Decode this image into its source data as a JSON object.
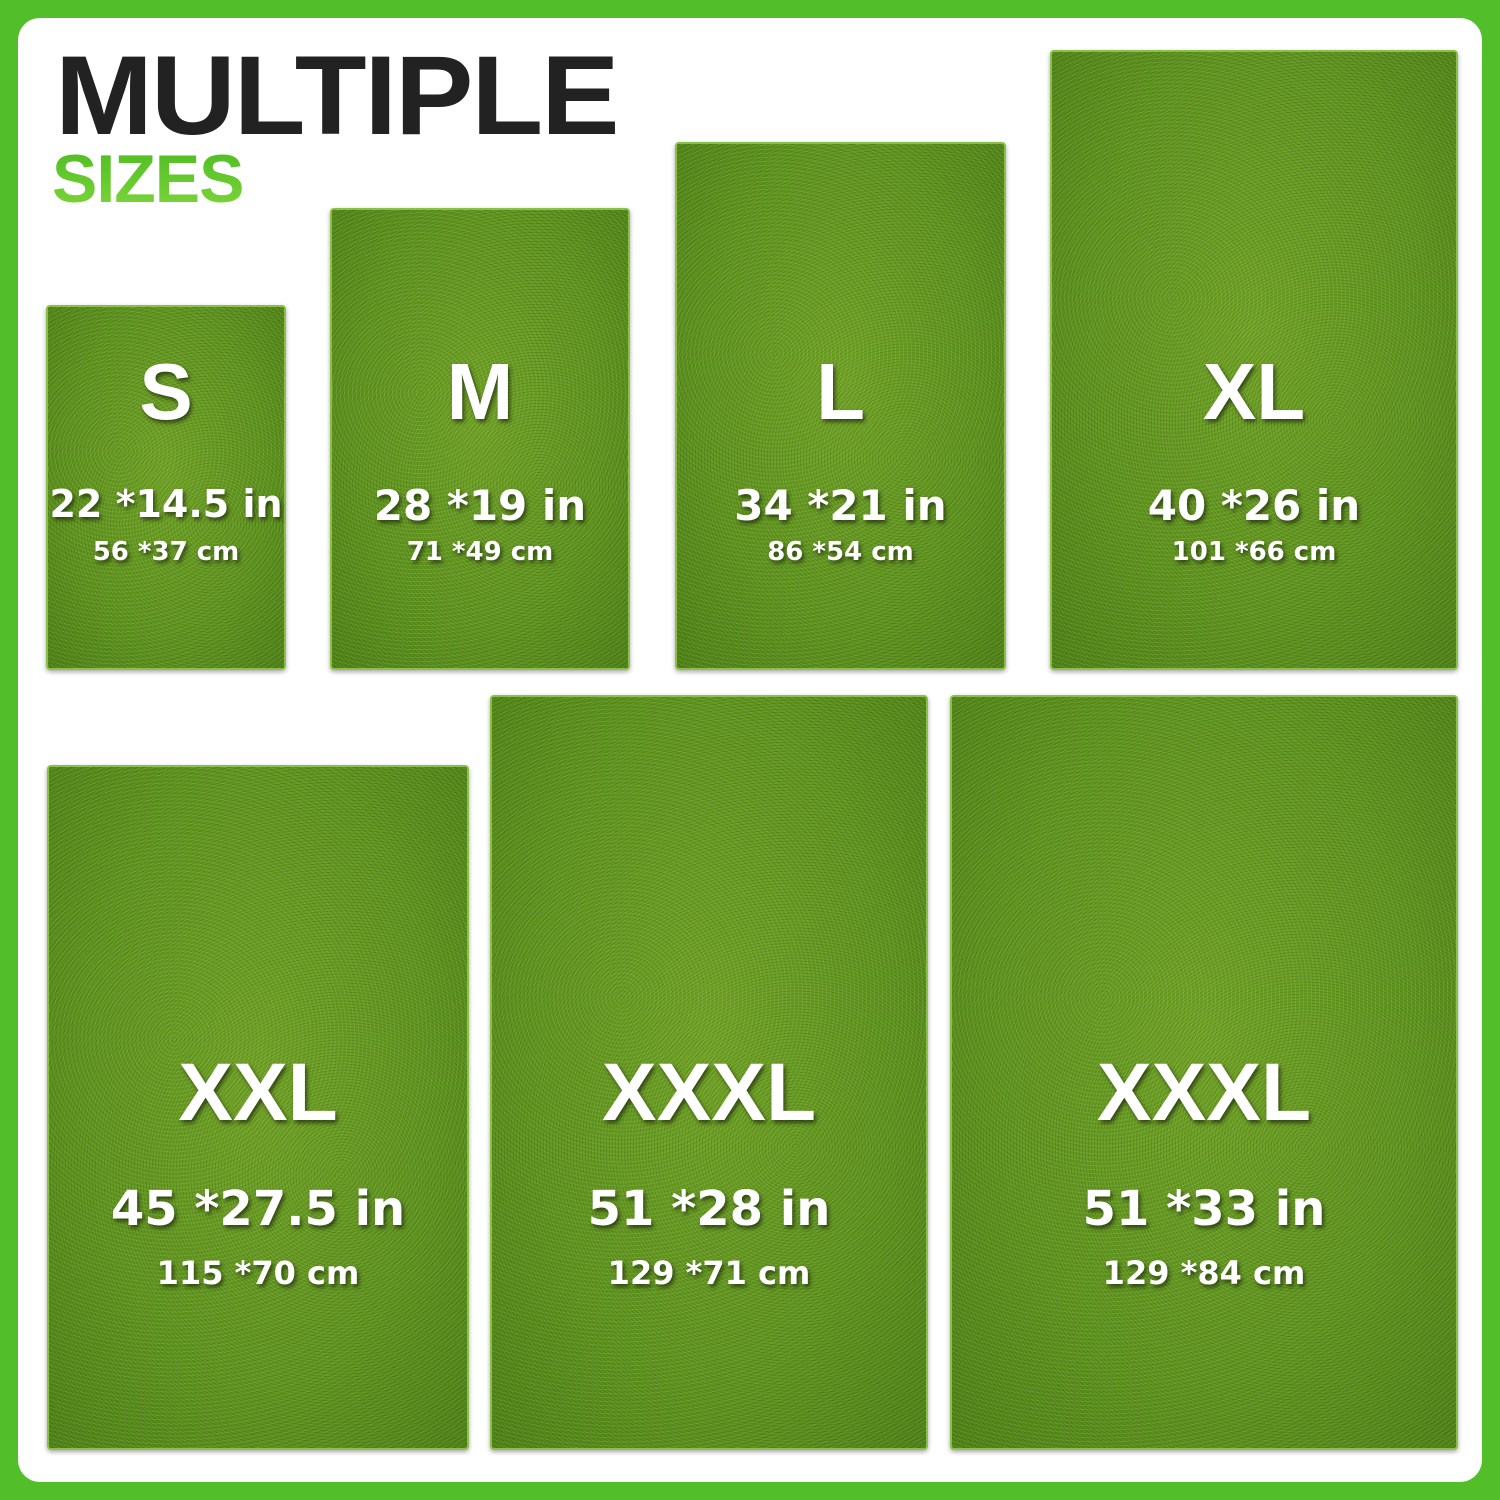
{
  "heading": {
    "line1": "MULTIPLE",
    "line2": "SIZES"
  },
  "colors": {
    "border": "#52be2a",
    "accent": "#5cc62e",
    "heading": "#222222",
    "grass": "#5f9420"
  },
  "sizes": [
    {
      "label": "S",
      "inches": "22 *14.5 in",
      "cm": "56 *37 cm"
    },
    {
      "label": "M",
      "inches": "28 *19 in",
      "cm": "71 *49 cm"
    },
    {
      "label": "L",
      "inches": "34 *21 in",
      "cm": "86 *54 cm"
    },
    {
      "label": "XL",
      "inches": "40 *26 in",
      "cm": "101 *66 cm"
    },
    {
      "label": "XXL",
      "inches": "45 *27.5 in",
      "cm": "115 *70 cm"
    },
    {
      "label": "XXXL",
      "inches": "51 *28 in",
      "cm": "129 *71 cm"
    },
    {
      "label": "XXXL",
      "inches": "51 *33 in",
      "cm": "129 *84 cm"
    }
  ]
}
